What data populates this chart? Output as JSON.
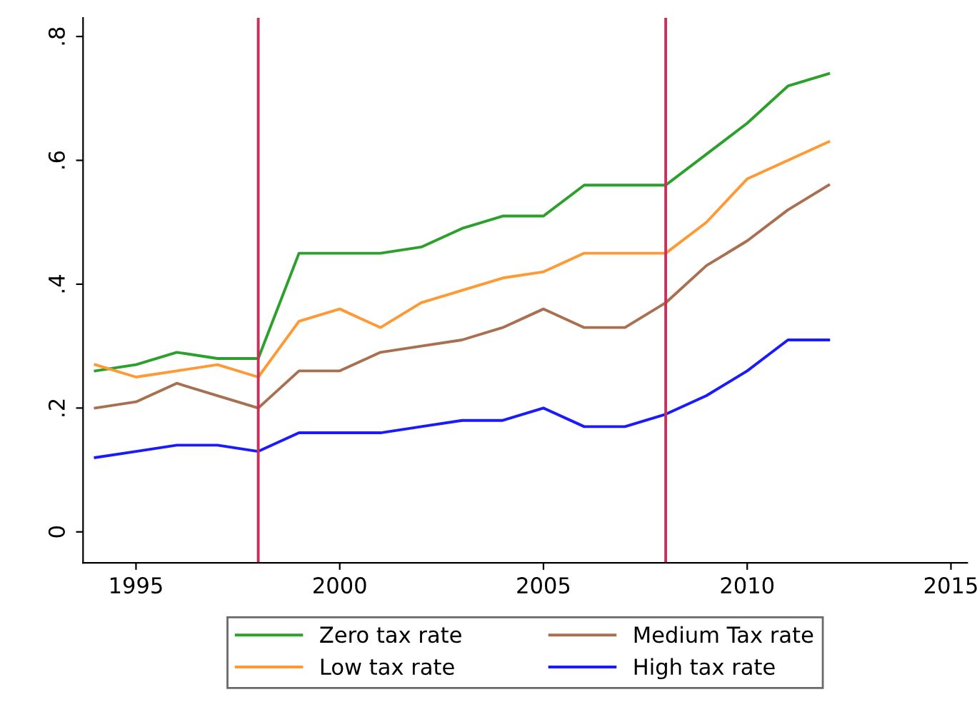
{
  "chart_data": {
    "type": "line",
    "x": [
      1994,
      1995,
      1996,
      1997,
      1998,
      1999,
      2000,
      2001,
      2002,
      2003,
      2004,
      2005,
      2006,
      2007,
      2008,
      2009,
      2010,
      2011,
      2012
    ],
    "series": [
      {
        "name": "Zero tax rate",
        "color": "#2ca02c",
        "values": [
          0.26,
          0.27,
          0.29,
          0.28,
          0.28,
          0.45,
          0.45,
          0.45,
          0.46,
          0.49,
          0.51,
          0.51,
          0.56,
          0.56,
          0.56,
          0.61,
          0.66,
          0.72,
          0.74
        ]
      },
      {
        "name": "Low tax rate",
        "color": "#ff9933",
        "values": [
          0.27,
          0.25,
          0.26,
          0.27,
          0.25,
          0.34,
          0.36,
          0.33,
          0.37,
          0.39,
          0.41,
          0.42,
          0.45,
          0.45,
          0.45,
          0.5,
          0.57,
          0.6,
          0.63
        ]
      },
      {
        "name": "Medium Tax rate",
        "color": "#a87050",
        "values": [
          0.2,
          0.21,
          0.24,
          0.22,
          0.2,
          0.26,
          0.26,
          0.29,
          0.3,
          0.31,
          0.33,
          0.36,
          0.33,
          0.33,
          0.37,
          0.43,
          0.47,
          0.52,
          0.56
        ]
      },
      {
        "name": "High tax rate",
        "color": "#1a1aff",
        "values": [
          0.12,
          0.13,
          0.14,
          0.14,
          0.13,
          0.16,
          0.16,
          0.16,
          0.17,
          0.18,
          0.18,
          0.2,
          0.17,
          0.17,
          0.19,
          0.22,
          0.26,
          0.31,
          0.31
        ]
      }
    ],
    "xlim": [
      1993.7,
      2015.4
    ],
    "xticks": [
      1995,
      2000,
      2005,
      2010,
      2015
    ],
    "ylim": [
      -0.05,
      0.83
    ],
    "yticks": [
      0,
      {
        "value": 0.2,
        "label": ".2"
      },
      {
        "value": 0.4,
        "label": ".4"
      },
      {
        "value": 0.6,
        "label": ".6"
      },
      {
        "value": 0.8,
        "label": ".8"
      }
    ],
    "ref_lines": [
      {
        "axis": "x",
        "value": 1998,
        "color": "#c8305a"
      },
      {
        "axis": "x",
        "value": 2008,
        "color": "#c8305a"
      }
    ],
    "grid": false,
    "legend": "bottom"
  }
}
